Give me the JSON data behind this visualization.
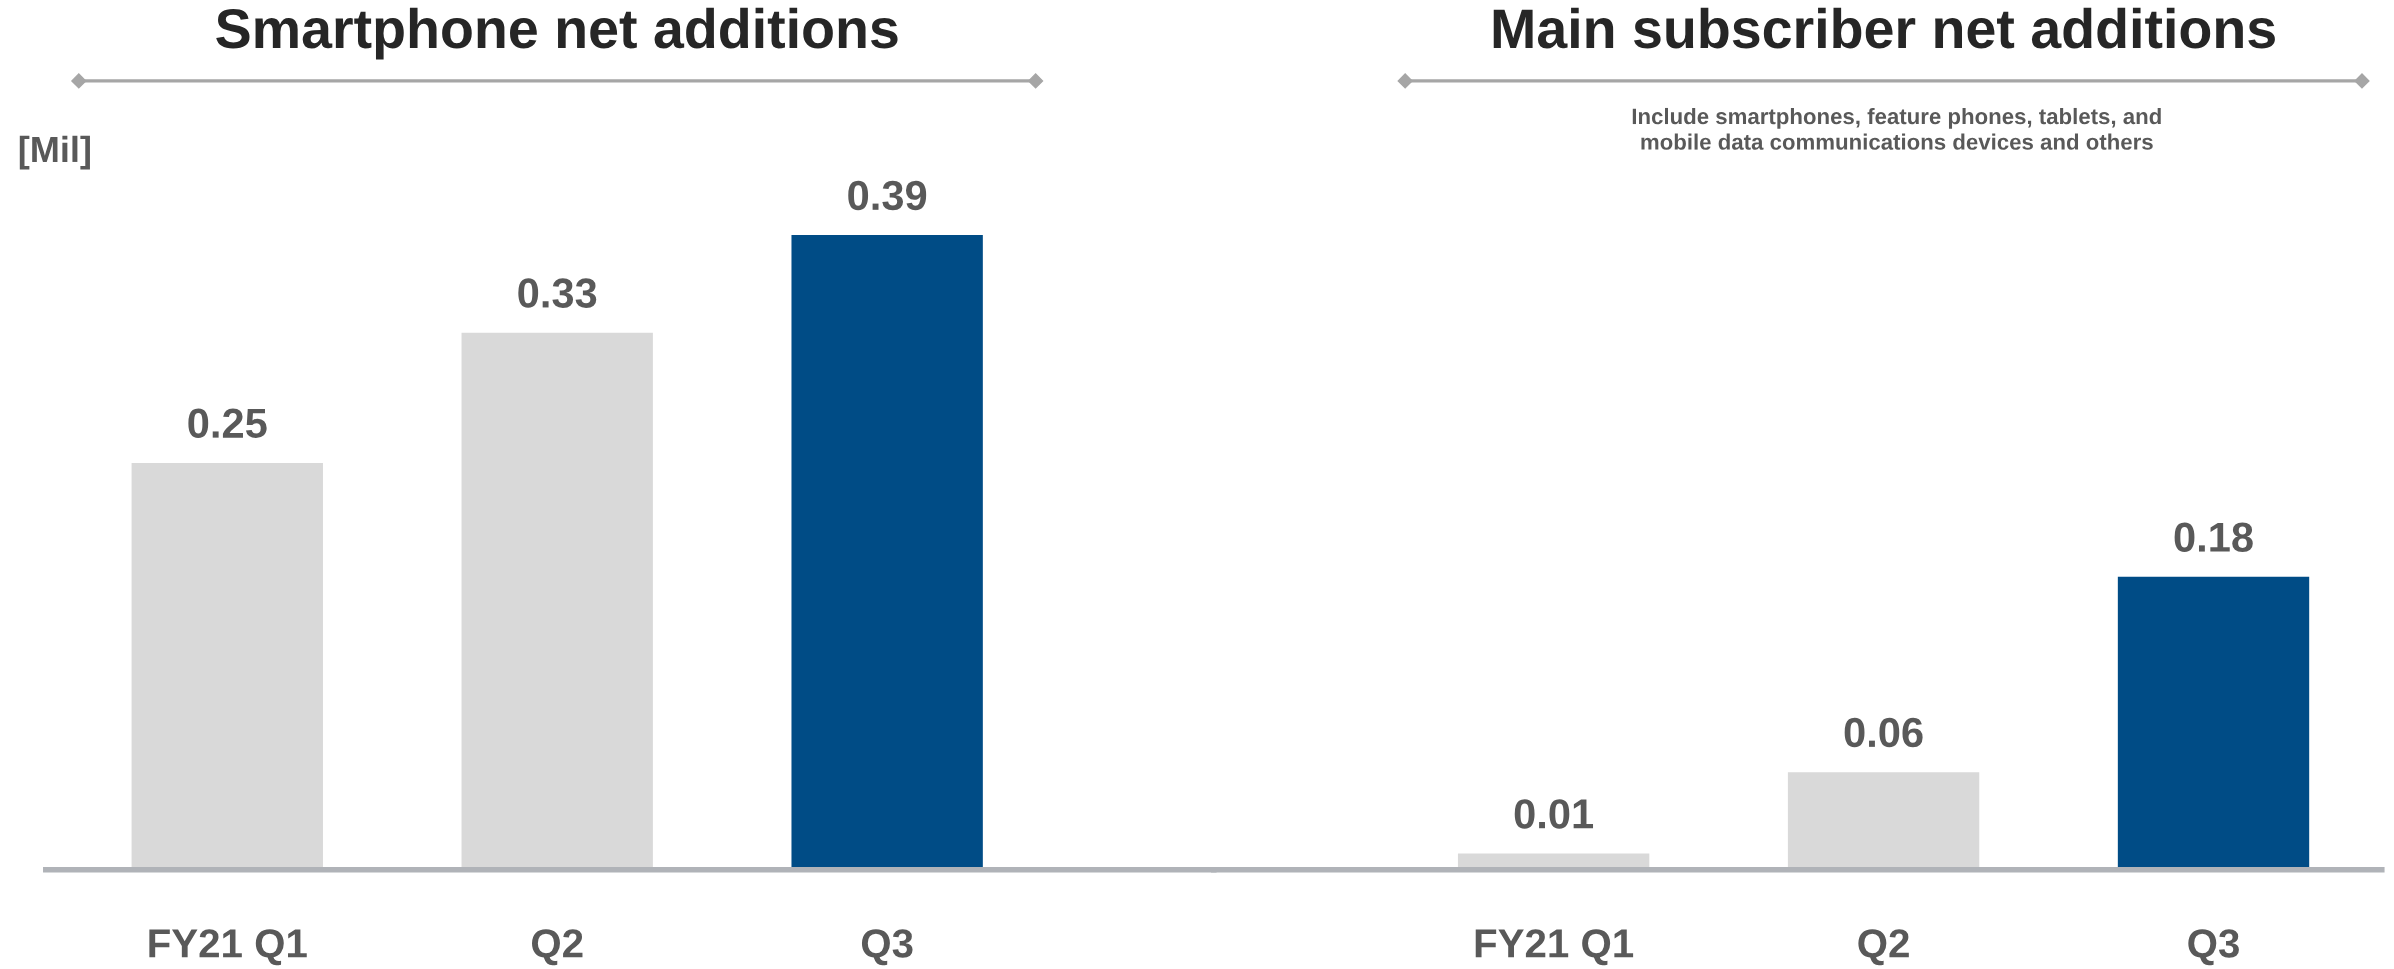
{
  "chart_data": [
    {
      "type": "bar",
      "title": "Smartphone net additions",
      "ylabel": "[Mil]",
      "categories": [
        "FY21 Q1",
        "Q2",
        "Q3"
      ],
      "values": [
        0.25,
        0.33,
        0.39
      ],
      "colors": [
        "#d9d9d9",
        "#d9d9d9",
        "#004c86"
      ],
      "data_labels": true,
      "grid": false,
      "legend": false,
      "tick_labels": "x"
    },
    {
      "type": "bar",
      "title": "Main subscriber net additions",
      "subtitle": "Include smartphones, feature phones, tablets, and\nmobile data communications devices and others",
      "categories": [
        "FY21 Q1",
        "Q2",
        "Q3"
      ],
      "values": [
        0.01,
        0.06,
        0.18
      ],
      "colors": [
        "#d9d9d9",
        "#d9d9d9",
        "#004c86"
      ],
      "data_labels": true,
      "grid": false,
      "legend": false,
      "tick_labels": "x"
    }
  ]
}
